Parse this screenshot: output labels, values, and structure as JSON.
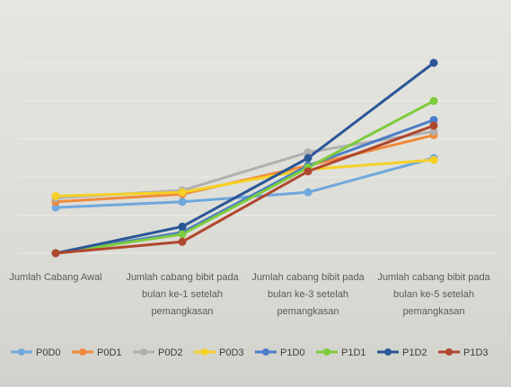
{
  "chart_data": {
    "type": "line",
    "title": "",
    "xlabel": "",
    "ylabel": "",
    "categories": [
      [
        "Jumlah Cabang Awal"
      ],
      [
        "Jumlah cabang bibit pada",
        "bulan ke-1 setelah",
        "pemangkasan"
      ],
      [
        "Jumlah cabang bibit pada",
        "bulan ke-3 setelah",
        "pemangkasan"
      ],
      [
        "Jumlah cabang bibit pada",
        "bulan ke-5 setelah",
        "pemangkasan"
      ]
    ],
    "ylim": [
      0,
      10
    ],
    "grid": true,
    "legend_position": "bottom",
    "series": [
      {
        "name": "P0D0",
        "color": "#6fa8dc",
        "values": [
          2.4,
          2.7,
          3.2,
          5.0
        ]
      },
      {
        "name": "P0D1",
        "color": "#f08a3c",
        "values": [
          2.7,
          3.1,
          4.6,
          6.2
        ]
      },
      {
        "name": "P0D2",
        "color": "#b0b0b0",
        "values": [
          2.9,
          3.3,
          5.3,
          6.4
        ]
      },
      {
        "name": "P0D3",
        "color": "#f5d125",
        "values": [
          3.0,
          3.2,
          4.4,
          4.9
        ]
      },
      {
        "name": "P1D0",
        "color": "#4a7cc7",
        "values": [
          0.0,
          1.1,
          4.6,
          7.0
        ]
      },
      {
        "name": "P1D1",
        "color": "#7ccc3c",
        "values": [
          0.0,
          1.0,
          4.5,
          8.0
        ]
      },
      {
        "name": "P1D2",
        "color": "#2b5797",
        "values": [
          0.0,
          1.4,
          5.0,
          10.0
        ]
      },
      {
        "name": "P1D3",
        "color": "#b0472f",
        "values": [
          0.0,
          0.6,
          4.3,
          6.7
        ]
      }
    ]
  }
}
